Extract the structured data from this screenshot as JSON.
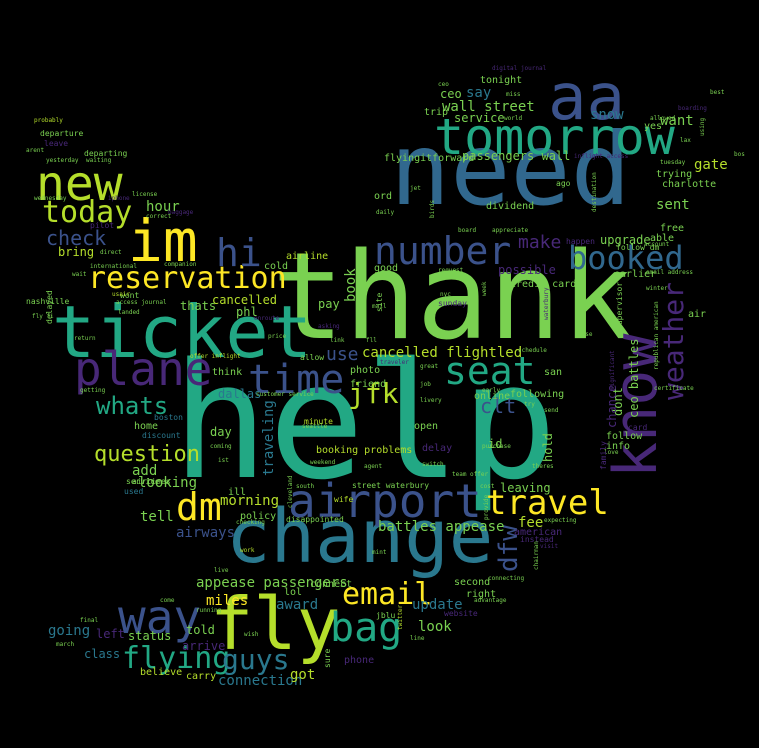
{
  "palette": {
    "background": "#000000",
    "green": "#3bb86f",
    "teal": "#22a884",
    "cyan_blue": "#2a788e",
    "blue": "#3b528b",
    "steel_blue": "#31688e",
    "purple": "#482878",
    "dark_purple": "#440154",
    "yellow_green": "#b5de2b",
    "yellow": "#fde725",
    "lime": "#7ad151"
  },
  "words": [
    {
      "text": "help"
    },
    {
      "text": "thank"
    },
    {
      "text": "need"
    },
    {
      "text": "change"
    },
    {
      "text": "ticket"
    },
    {
      "text": "fly"
    },
    {
      "text": "aa"
    },
    {
      "text": "tomorrow"
    },
    {
      "text": "im"
    },
    {
      "text": "new"
    },
    {
      "text": "know"
    },
    {
      "text": "airport"
    },
    {
      "text": "plane"
    },
    {
      "text": "bag"
    },
    {
      "text": "way"
    },
    {
      "text": "dm"
    },
    {
      "text": "reservation"
    },
    {
      "text": "number"
    },
    {
      "text": "seat"
    },
    {
      "text": "time"
    },
    {
      "text": "hi"
    },
    {
      "text": "travel"
    },
    {
      "text": "today"
    },
    {
      "text": "flying"
    },
    {
      "text": "booked"
    },
    {
      "text": "email"
    },
    {
      "text": "guys"
    },
    {
      "text": "weather"
    },
    {
      "text": "jfk"
    },
    {
      "text": "whats"
    },
    {
      "text": "question"
    },
    {
      "text": "check"
    },
    {
      "text": "make"
    },
    {
      "text": "dfw"
    },
    {
      "text": "use"
    },
    {
      "text": "cancelled flightled"
    },
    {
      "text": "clt"
    },
    {
      "text": "want"
    },
    {
      "text": "gate"
    },
    {
      "text": "sent"
    },
    {
      "text": "hour"
    },
    {
      "text": "wall street"
    },
    {
      "text": "passengers wall"
    },
    {
      "text": "service"
    },
    {
      "text": "snow"
    },
    {
      "text": "say"
    },
    {
      "text": "ceo"
    },
    {
      "text": "trip"
    },
    {
      "text": "tonight"
    },
    {
      "text": "miles"
    },
    {
      "text": "update"
    },
    {
      "text": "look"
    },
    {
      "text": "going"
    },
    {
      "text": "status"
    },
    {
      "text": "connection"
    },
    {
      "text": "got"
    },
    {
      "text": "fee"
    },
    {
      "text": "leaving"
    },
    {
      "text": "battles appease"
    },
    {
      "text": "appease passengers"
    },
    {
      "text": "award"
    },
    {
      "text": "left"
    },
    {
      "text": "arrive"
    },
    {
      "text": "told"
    },
    {
      "text": "class"
    },
    {
      "text": "believe"
    },
    {
      "text": "carry"
    },
    {
      "text": "airways"
    },
    {
      "text": "morning"
    },
    {
      "text": "policy"
    },
    {
      "text": "tell"
    },
    {
      "text": "looking"
    },
    {
      "text": "add"
    },
    {
      "text": "day"
    },
    {
      "text": "home"
    },
    {
      "text": "dallas"
    },
    {
      "text": "traveling"
    },
    {
      "text": "cancelled"
    },
    {
      "text": "phl"
    },
    {
      "text": "thats"
    },
    {
      "text": "pay"
    },
    {
      "text": "book"
    },
    {
      "text": "airline"
    },
    {
      "text": "cold"
    },
    {
      "text": "good"
    },
    {
      "text": "possible"
    },
    {
      "text": "ord"
    },
    {
      "text": "dividend"
    },
    {
      "text": "credit card"
    },
    {
      "text": "san"
    },
    {
      "text": "following"
    },
    {
      "text": "online"
    },
    {
      "text": "delay"
    },
    {
      "text": "open"
    },
    {
      "text": "dont"
    },
    {
      "text": "chance"
    },
    {
      "text": "ceo battles"
    },
    {
      "text": "hold"
    },
    {
      "text": "id"
    },
    {
      "text": "info"
    },
    {
      "text": "follow"
    },
    {
      "text": "upgrade"
    },
    {
      "text": "able"
    },
    {
      "text": "free"
    },
    {
      "text": "earlier"
    },
    {
      "text": "air"
    },
    {
      "text": "trying"
    },
    {
      "text": "charlotte"
    },
    {
      "text": "yes"
    },
    {
      "text": "flyingitforward"
    },
    {
      "text": "bring"
    },
    {
      "text": "friend"
    },
    {
      "text": "photo"
    },
    {
      "text": "think"
    },
    {
      "text": "booking problems"
    },
    {
      "text": "minute"
    },
    {
      "text": "ill"
    },
    {
      "text": "second"
    },
    {
      "text": "right"
    },
    {
      "text": "connect"
    },
    {
      "text": "lol"
    },
    {
      "text": "departure"
    },
    {
      "text": "departing"
    },
    {
      "text": "leave"
    },
    {
      "text": "probably"
    },
    {
      "text": "wont"
    },
    {
      "text": "delayed"
    },
    {
      "text": "boston"
    },
    {
      "text": "discount"
    },
    {
      "text": "used"
    },
    {
      "text": "airlines"
    },
    {
      "text": "service"
    },
    {
      "text": "customer service"
    },
    {
      "text": "disappointed"
    },
    {
      "text": "checking"
    },
    {
      "text": "work"
    },
    {
      "text": "website"
    },
    {
      "text": "waterbury"
    },
    {
      "text": "american"
    },
    {
      "text": "instead"
    },
    {
      "text": "visit"
    },
    {
      "text": "expecting"
    },
    {
      "text": "street waterbury"
    },
    {
      "text": "wife"
    },
    {
      "text": "agent"
    },
    {
      "text": "switch"
    },
    {
      "text": "purchase"
    },
    {
      "text": "theres"
    },
    {
      "text": "love"
    },
    {
      "text": "family"
    },
    {
      "text": "card"
    },
    {
      "text": "send"
    },
    {
      "text": "try"
    },
    {
      "text": "case"
    },
    {
      "text": "account"
    },
    {
      "text": "winter"
    },
    {
      "text": "email address"
    },
    {
      "text": "supervisor"
    },
    {
      "text": "schedule"
    },
    {
      "text": "sure"
    },
    {
      "text": "phone"
    },
    {
      "text": "line"
    },
    {
      "text": "twitter"
    },
    {
      "text": "jblu"
    },
    {
      "text": "fll"
    },
    {
      "text": "link"
    },
    {
      "text": "asking"
    },
    {
      "text": "allow"
    },
    {
      "text": "price"
    },
    {
      "text": "offer inflight"
    },
    {
      "text": "landed"
    },
    {
      "text": "usair"
    },
    {
      "text": "direct"
    },
    {
      "text": "pilot"
    },
    {
      "text": "international"
    },
    {
      "text": "companion"
    },
    {
      "text": "license"
    },
    {
      "text": "wednesday"
    },
    {
      "text": "iphone"
    },
    {
      "text": "correct"
    },
    {
      "text": "baggage"
    },
    {
      "text": "miss"
    },
    {
      "text": "digital journal"
    },
    {
      "text": "best"
    },
    {
      "text": "bos"
    },
    {
      "text": "ago"
    },
    {
      "text": "board"
    },
    {
      "text": "appreciate"
    },
    {
      "text": "happen"
    },
    {
      "text": "follow dm"
    },
    {
      "text": "request"
    },
    {
      "text": "nyc"
    },
    {
      "text": "sunday"
    },
    {
      "text": "week"
    },
    {
      "text": "site"
    },
    {
      "text": "mail"
    },
    {
      "text": "live"
    },
    {
      "text": "mint"
    },
    {
      "text": "wish"
    },
    {
      "text": "running"
    },
    {
      "text": "come"
    },
    {
      "text": "final"
    },
    {
      "text": "march"
    },
    {
      "text": "weekend"
    },
    {
      "text": "seattle"
    },
    {
      "text": "cleveland"
    },
    {
      "text": "south"
    },
    {
      "text": "cost"
    },
    {
      "text": "provide"
    },
    {
      "text": "chairman"
    },
    {
      "text": "connecting"
    },
    {
      "text": "advantage"
    },
    {
      "text": "ist"
    },
    {
      "text": "coming"
    },
    {
      "text": "job"
    },
    {
      "text": "great"
    },
    {
      "text": "traveler"
    },
    {
      "text": "livery"
    },
    {
      "text": "team offer"
    },
    {
      "text": "early"
    },
    {
      "text": "inflight access"
    },
    {
      "text": "destination"
    },
    {
      "text": "birds"
    },
    {
      "text": "daily"
    },
    {
      "text": "jet"
    },
    {
      "text": "world"
    },
    {
      "text": "nashville"
    },
    {
      "text": "fly fi"
    },
    {
      "text": "return"
    },
    {
      "text": "wait"
    },
    {
      "text": "getting"
    },
    {
      "text": "enroute"
    },
    {
      "text": "yesterday"
    },
    {
      "text": "waiting"
    },
    {
      "text": "arent"
    },
    {
      "text": "republican american"
    },
    {
      "text": "certificate"
    },
    {
      "text": "significant"
    },
    {
      "text": "allowed"
    },
    {
      "text": "using"
    },
    {
      "text": "boarding"
    },
    {
      "text": "tuesday"
    },
    {
      "text": "ceo"
    },
    {
      "text": "lax"
    },
    {
      "text": "access journal"
    }
  ]
}
